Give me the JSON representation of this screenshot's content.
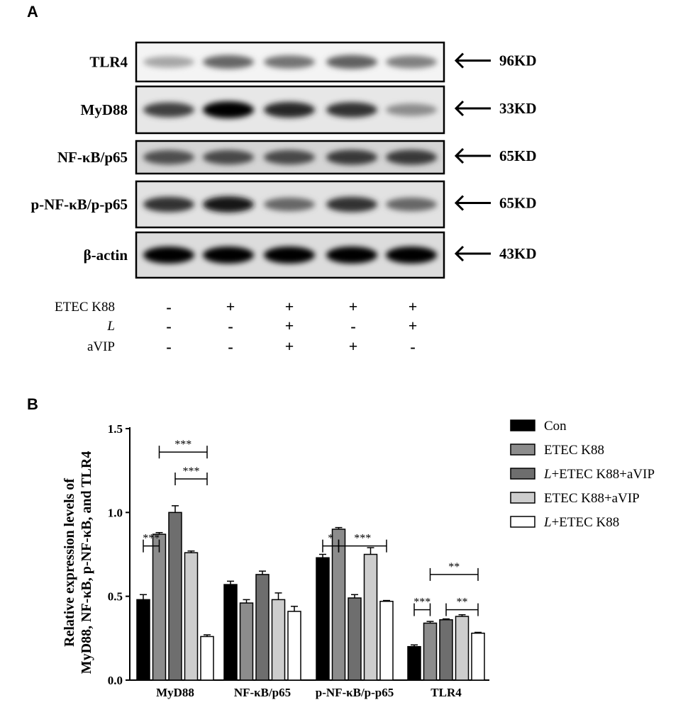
{
  "panels": {
    "a": "A",
    "b": "B"
  },
  "blot": {
    "bands": [
      {
        "name": "TLR4",
        "kd": "96KD",
        "intensity": [
          0.35,
          0.6,
          0.55,
          0.62,
          0.5
        ],
        "bg": "#f4f4f4"
      },
      {
        "name": "MyD88",
        "kd": "33KD",
        "intensity": [
          0.75,
          1.0,
          0.85,
          0.8,
          0.45
        ],
        "bg": "#e7e7e7"
      },
      {
        "name": "NF-κB/p65",
        "kd": "65KD",
        "intensity": [
          0.7,
          0.72,
          0.72,
          0.78,
          0.78
        ],
        "bg": "#d5d5d5"
      },
      {
        "name": "p-NF-κB/p-p65",
        "kd": "65KD",
        "intensity": [
          0.8,
          0.9,
          0.6,
          0.8,
          0.6
        ],
        "bg": "#e2e2e2"
      },
      {
        "name": "β-actin",
        "kd": "43KD",
        "intensity": [
          1.0,
          1.0,
          1.0,
          1.0,
          1.0
        ],
        "bg": "#dcdcdc"
      }
    ],
    "conditions": [
      {
        "label": "ETEC K88",
        "italic": false,
        "signs": [
          "-",
          "+",
          "+",
          "+",
          "+"
        ]
      },
      {
        "label": "L",
        "italic": true,
        "signs": [
          "-",
          "-",
          "+",
          "-",
          "+"
        ]
      },
      {
        "label": "aVIP",
        "italic": false,
        "signs": [
          "-",
          "-",
          "+",
          "+",
          "-"
        ]
      }
    ]
  },
  "chart_data": {
    "type": "bar",
    "categories": [
      "MyD88",
      "NF-κB/p65",
      "p-NF-κB/p-p65",
      "TLR4"
    ],
    "ylabel_lines": [
      "Relative expression levels of",
      "MyD88, NF-κB, p-NF-κB, and TLR4"
    ],
    "ylim": [
      0,
      1.5
    ],
    "yticks": [
      "0.0",
      "0.5",
      "1.0",
      "1.5"
    ],
    "legend_position": "top-right",
    "series": [
      {
        "name": "Con",
        "prefix": "",
        "suffix": "Con",
        "color": "#000000",
        "values": [
          0.48,
          0.57,
          0.73,
          0.2
        ],
        "errors": [
          0.03,
          0.02,
          0.02,
          0.01
        ]
      },
      {
        "name": "ETEC K88",
        "prefix": "",
        "suffix": "ETEC K88",
        "color": "#8c8c8c",
        "values": [
          0.87,
          0.46,
          0.9,
          0.34
        ],
        "errors": [
          0.01,
          0.02,
          0.01,
          0.01
        ]
      },
      {
        "name": "L+ETEC K88+aVIP",
        "prefix": "L",
        "suffix": "+ETEC K88+aVIP",
        "color": "#6e6e6e",
        "values": [
          1.0,
          0.63,
          0.49,
          0.36
        ],
        "errors": [
          0.04,
          0.02,
          0.02,
          0.005
        ]
      },
      {
        "name": "ETEC K88+aVIP",
        "prefix": "",
        "suffix": "ETEC K88+aVIP",
        "color": "#cdcdcd",
        "values": [
          0.76,
          0.48,
          0.75,
          0.38
        ],
        "errors": [
          0.01,
          0.04,
          0.04,
          0.01
        ]
      },
      {
        "name": "L+ETEC K88",
        "prefix": "L",
        "suffix": "+ETEC K88",
        "color": "#ffffff",
        "values": [
          0.26,
          0.41,
          0.47,
          0.28
        ],
        "errors": [
          0.01,
          0.03,
          0.005,
          0.005
        ]
      }
    ],
    "significance": [
      {
        "group": 0,
        "from": 0,
        "to": 1,
        "label": "***",
        "y": 0.8
      },
      {
        "group": 0,
        "from": 1,
        "to": 4,
        "label": "***",
        "y": 1.36
      },
      {
        "group": 0,
        "from": 2,
        "to": 4,
        "label": "***",
        "y": 1.2
      },
      {
        "group": 2,
        "from": 0,
        "to": 1,
        "label": "*",
        "y": 0.8
      },
      {
        "group": 2,
        "from": 1,
        "to": 4,
        "label": "***",
        "y": 0.8
      },
      {
        "group": 3,
        "from": 0,
        "to": 1,
        "label": "***",
        "y": 0.42
      },
      {
        "group": 3,
        "from": 1,
        "to": 4,
        "label": "**",
        "y": 0.63
      },
      {
        "group": 3,
        "from": 2,
        "to": 4,
        "label": "**",
        "y": 0.42
      }
    ]
  }
}
